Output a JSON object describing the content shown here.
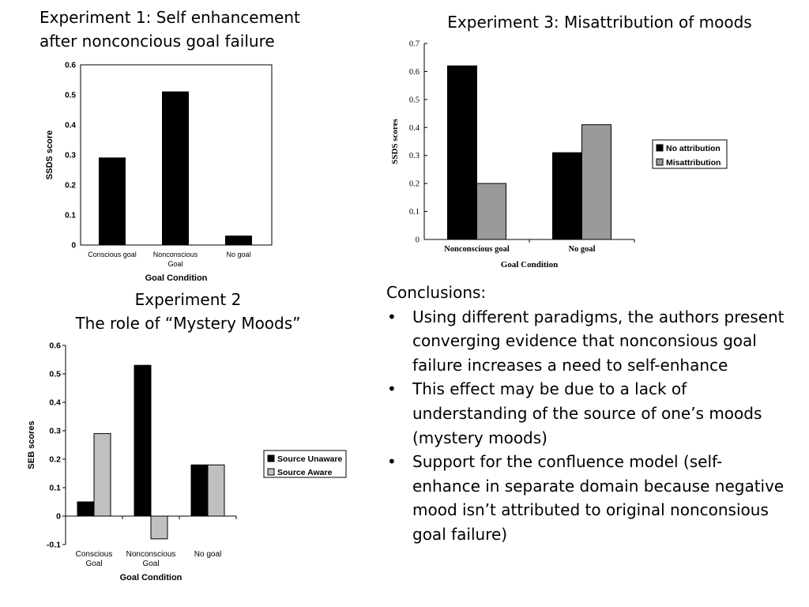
{
  "experiment1": {
    "title_line1": "Experiment 1: Self enhancement",
    "title_line2": "after nonconcious goal failure"
  },
  "experiment2": {
    "title_line1": "Experiment 2",
    "title_line2": "The role of “Mystery Moods”"
  },
  "experiment3": {
    "title": "Experiment 3: Misattribution of moods"
  },
  "conclusions": {
    "heading": "Conclusions:",
    "bullets": [
      "Using different paradigms, the authors present converging evidence that nonconsious goal failure increases a need to self-enhance",
      "This effect may be due to a lack of understanding of the source of one’s moods (mystery moods)",
      "Support for the confluence model (self-enhance in separate domain because negative mood isn’t attributed to original nonconsious goal failure)"
    ]
  },
  "chart_data": [
    {
      "type": "bar",
      "categories": [
        [
          "Conscious goal"
        ],
        [
          "Nonconscious",
          "Goal"
        ],
        [
          "No goal"
        ]
      ],
      "series": [
        {
          "values": [
            0.29,
            0.51,
            0.03
          ],
          "color": "#000000"
        }
      ],
      "xlabel": "Goal Condition",
      "ylabel": "SSDS score",
      "ylim": [
        0,
        0.6
      ],
      "yticks": [
        "0",
        "0.1",
        "0.2",
        "0.3",
        "0.4",
        "0.5",
        "0.6"
      ],
      "grid": false,
      "legend": null
    },
    {
      "type": "bar",
      "categories": [
        [
          "Conscious",
          "Goal"
        ],
        [
          "Nonconscious",
          "Goal"
        ],
        [
          "No goal"
        ]
      ],
      "series": [
        {
          "name": "Source Unaware",
          "values": [
            0.05,
            0.53,
            0.18
          ],
          "color": "#000000"
        },
        {
          "name": "Source Aware",
          "values": [
            0.29,
            -0.08,
            0.18
          ],
          "color": "#c0c0c0"
        }
      ],
      "xlabel": "Goal Condition",
      "ylabel": "SEB scores",
      "ylim": [
        -0.1,
        0.6
      ],
      "yticks": [
        "-0.1",
        "0",
        "0.1",
        "0.2",
        "0.3",
        "0.4",
        "0.5",
        "0.6"
      ],
      "grid": false,
      "legend": "right"
    },
    {
      "type": "bar",
      "categories": [
        [
          "Nonconscious goal"
        ],
        [
          "No goal"
        ]
      ],
      "series": [
        {
          "name": "No attribution",
          "values": [
            0.62,
            0.31
          ],
          "color": "#000000"
        },
        {
          "name": "Misattribution",
          "values": [
            0.2,
            0.41
          ],
          "color": "#999999"
        }
      ],
      "xlabel": "Goal Condition",
      "ylabel": "SSDS scores",
      "ylim": [
        0,
        0.7
      ],
      "yticks": [
        "0",
        "0.1",
        "0.2",
        "0.3",
        "0.4",
        "0.5",
        "0.6",
        "0.7"
      ],
      "grid": false,
      "legend": "right"
    }
  ]
}
